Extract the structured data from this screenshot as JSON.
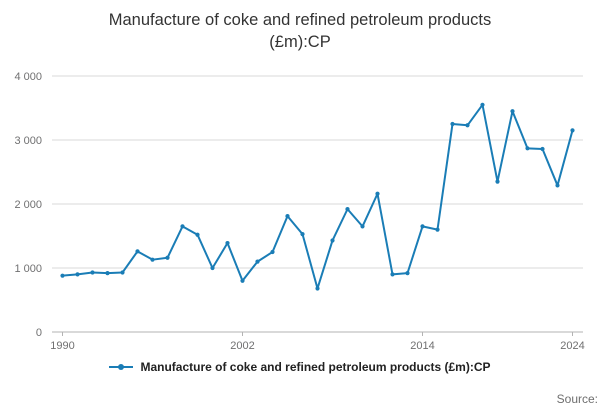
{
  "title": "Manufacture of coke and refined petroleum products (£m):CP",
  "legend": {
    "label": "Manufacture of coke and refined petroleum products (£m):CP"
  },
  "source": "Source:",
  "colors": {
    "line": "#1a7db6",
    "grid": "#d9d9d9",
    "baseline": "#b3b3b3",
    "axis_text": "#707071",
    "title_text": "#333333"
  },
  "chart_data": {
    "type": "line",
    "title": "Manufacture of coke and refined petroleum products (£m):CP",
    "series_name": "Manufacture of coke and refined petroleum products (£m):CP",
    "x": [
      1990,
      1991,
      1992,
      1993,
      1994,
      1995,
      1996,
      1997,
      1998,
      1999,
      2000,
      2001,
      2002,
      2003,
      2004,
      2005,
      2006,
      2007,
      2008,
      2009,
      2010,
      2011,
      2012,
      2013,
      2014,
      2015,
      2016,
      2017,
      2018,
      2019,
      2020,
      2021,
      2022,
      2023,
      2024
    ],
    "values": [
      880,
      900,
      930,
      920,
      930,
      1260,
      1130,
      1160,
      1650,
      1520,
      1000,
      1390,
      800,
      1100,
      1250,
      1810,
      1530,
      680,
      1430,
      1920,
      1650,
      2160,
      900,
      920,
      1650,
      1600,
      3250,
      3230,
      3550,
      2350,
      3450,
      2870,
      2860,
      2290,
      3150
    ],
    "xlabel": "",
    "ylabel": "",
    "ylim": [
      0,
      4000
    ],
    "yticks": [
      0,
      1000,
      2000,
      3000,
      4000
    ],
    "ytick_labels": [
      "0",
      "1 000",
      "2 000",
      "3 000",
      "4 000"
    ],
    "xticks": [
      1990,
      2002,
      2014,
      2024
    ],
    "xtick_labels": [
      "1990",
      "2002",
      "2014",
      "2024"
    ],
    "grid": "horizontal",
    "legend_position": "bottom",
    "marker": "dot"
  }
}
